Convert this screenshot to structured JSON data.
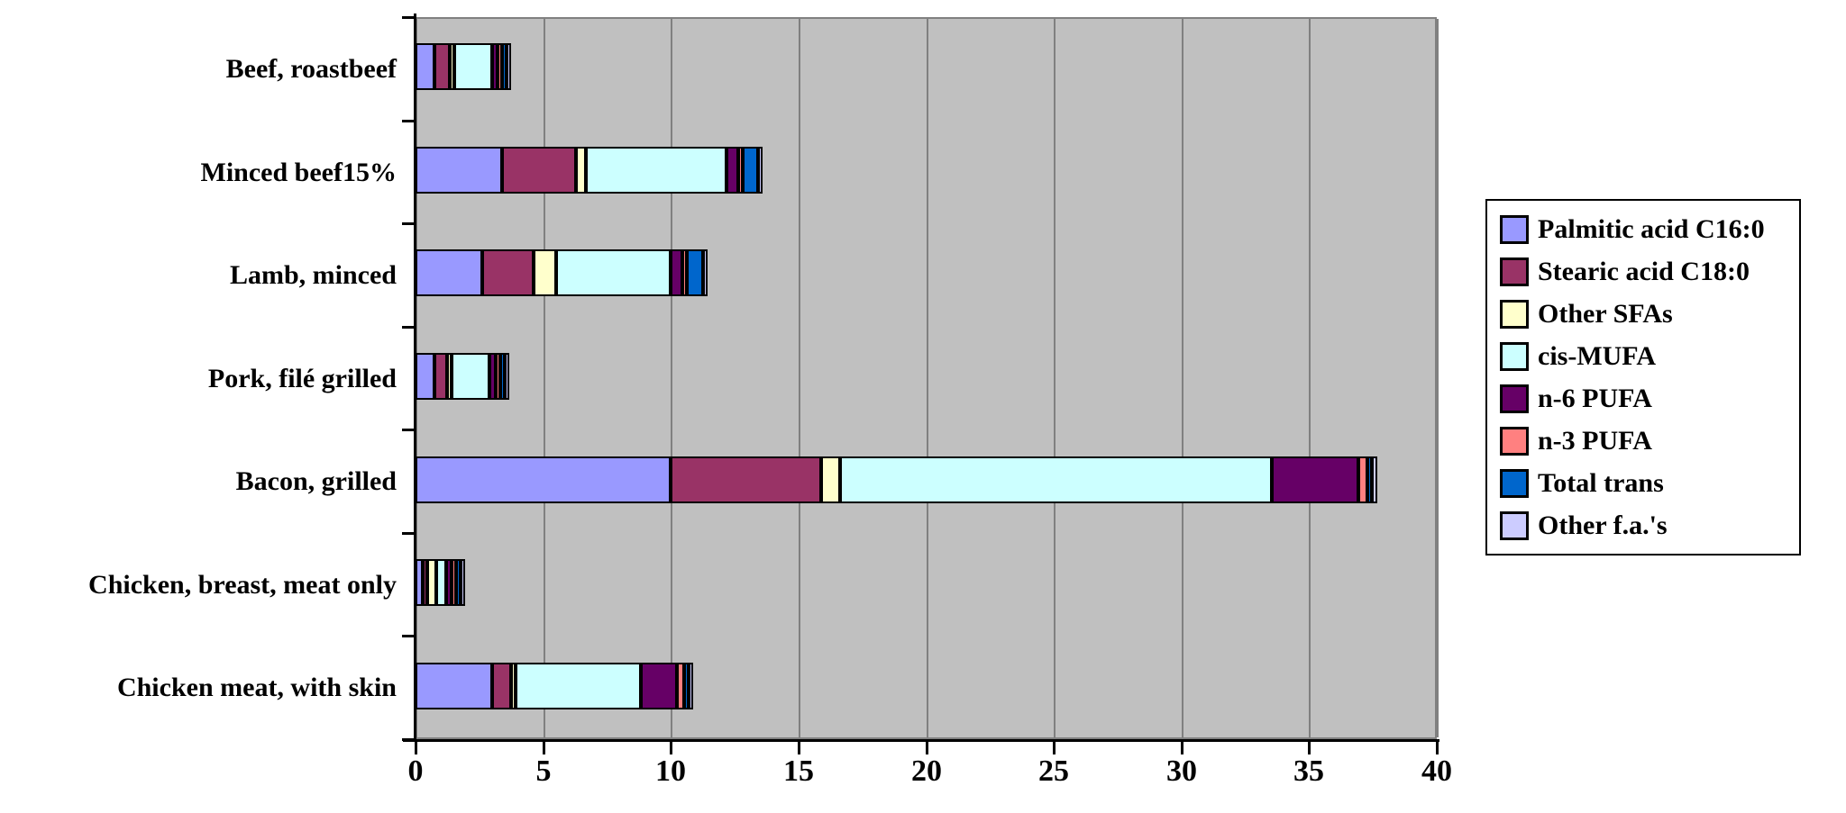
{
  "chart_data": {
    "type": "bar",
    "orientation": "horizontal",
    "stacked": true,
    "title": "",
    "xlabel": "",
    "ylabel": "",
    "xlim": [
      0,
      40
    ],
    "xticks": [
      0,
      5,
      10,
      15,
      20,
      25,
      30,
      35,
      40
    ],
    "grid": "vertical gridlines every 5 units",
    "legend_position": "right",
    "plot_background_color": "#C0C0C0",
    "gridline_color": "#808080",
    "bar_outline_color": "#000000",
    "categories": [
      "Beef, roastbeef",
      "Minced beef15%",
      "Lamb, minced",
      "Pork, filé grilled",
      "Bacon, grilled",
      "Chicken, breast, meat only",
      "Chicken meat, with skin"
    ],
    "series": [
      {
        "name": "Palmitic acid C16:0",
        "color": "#9999FF",
        "values": [
          0.75,
          3.4,
          2.6,
          0.75,
          10.0,
          0.3,
          3.0
        ]
      },
      {
        "name": "Stearic acid C18:0",
        "color": "#993366",
        "values": [
          0.6,
          2.9,
          2.0,
          0.5,
          5.9,
          0.12,
          0.75
        ]
      },
      {
        "name": "Other SFAs",
        "color": "#FFFFCC",
        "values": [
          0.1,
          0.4,
          0.9,
          0.1,
          0.75,
          0.35,
          0.15
        ]
      },
      {
        "name": "cis-MUFA",
        "color": "#CCFFFF",
        "values": [
          1.5,
          5.5,
          4.5,
          1.5,
          16.9,
          0.4,
          4.9
        ]
      },
      {
        "name": "n-6 PUFA",
        "color": "#660066",
        "values": [
          0.2,
          0.45,
          0.45,
          0.25,
          3.4,
          0.2,
          1.4
        ]
      },
      {
        "name": "n-3 PUFA",
        "color": "#FF8080",
        "values": [
          0.05,
          0.05,
          0.15,
          0.05,
          0.35,
          0.05,
          0.3
        ]
      },
      {
        "name": "Total trans",
        "color": "#0066CC",
        "values": [
          0.15,
          0.6,
          0.65,
          0.15,
          0.1,
          0.05,
          0.15
        ]
      },
      {
        "name": "Other f.a.'s",
        "color": "#CCCCFF",
        "values": [
          0.05,
          0.1,
          0.1,
          0.05,
          0.2,
          0.1,
          0.1
        ]
      }
    ]
  }
}
